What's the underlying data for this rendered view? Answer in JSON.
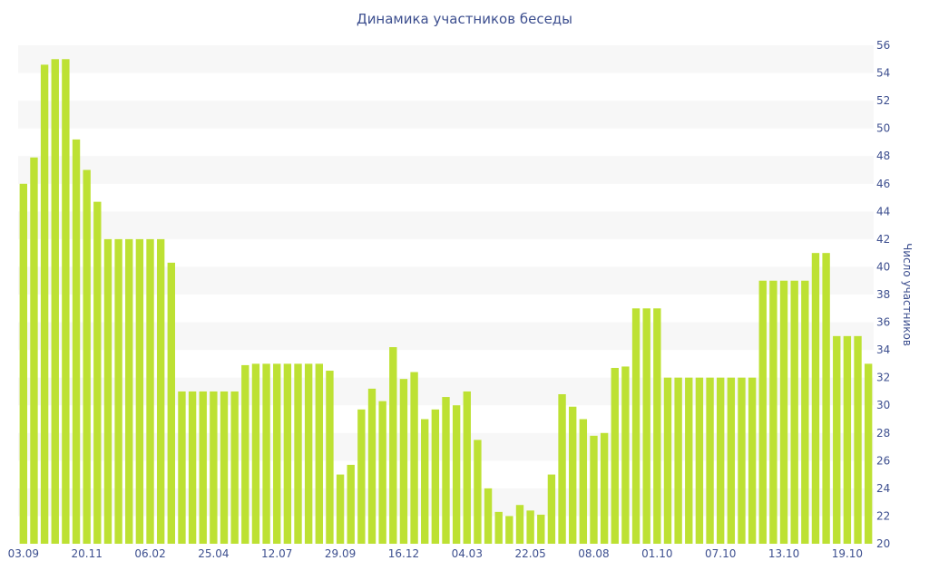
{
  "chart_data": {
    "type": "bar",
    "title": "Динамика участников беседы",
    "ylabel": "Число участников",
    "xlabel": "",
    "ylim": [
      20,
      56
    ],
    "ytick_step": 2,
    "bar_color": "#bde133",
    "band_color": "#f7f7f7",
    "text_color": "#3d4f8f",
    "values": [
      46,
      47.9,
      54.6,
      55,
      55,
      49.2,
      47,
      44.7,
      42,
      42,
      42,
      42,
      42,
      42,
      40.3,
      31,
      31,
      31,
      31,
      31,
      31,
      32.9,
      33,
      33,
      33,
      33,
      33,
      33,
      33,
      32.5,
      25,
      25.7,
      29.7,
      31.2,
      30.3,
      34.2,
      31.9,
      32.4,
      29,
      29.7,
      30.6,
      30,
      31,
      27.5,
      24,
      22.3,
      22,
      22.8,
      22.4,
      22.1,
      25,
      30.8,
      29.9,
      29,
      27.8,
      28,
      32.7,
      32.8,
      37,
      37,
      37,
      32,
      32,
      32,
      32,
      32,
      32,
      32,
      32,
      32,
      39,
      39,
      39,
      39,
      39,
      41,
      41,
      35,
      35,
      35,
      33
    ],
    "x_tick_labels": [
      {
        "label": "03.09",
        "index": 0
      },
      {
        "label": "20.11",
        "index": 6
      },
      {
        "label": "06.02",
        "index": 12
      },
      {
        "label": "25.04",
        "index": 18
      },
      {
        "label": "12.07",
        "index": 24
      },
      {
        "label": "29.09",
        "index": 30
      },
      {
        "label": "16.12",
        "index": 36
      },
      {
        "label": "04.03",
        "index": 42
      },
      {
        "label": "22.05",
        "index": 48
      },
      {
        "label": "08.08",
        "index": 54
      },
      {
        "label": "01.10",
        "index": 60
      },
      {
        "label": "07.10",
        "index": 66
      },
      {
        "label": "13.10",
        "index": 72
      },
      {
        "label": "19.10",
        "index": 78
      }
    ],
    "grid": "alternating horizontal bands",
    "y_axis_position": "right"
  }
}
